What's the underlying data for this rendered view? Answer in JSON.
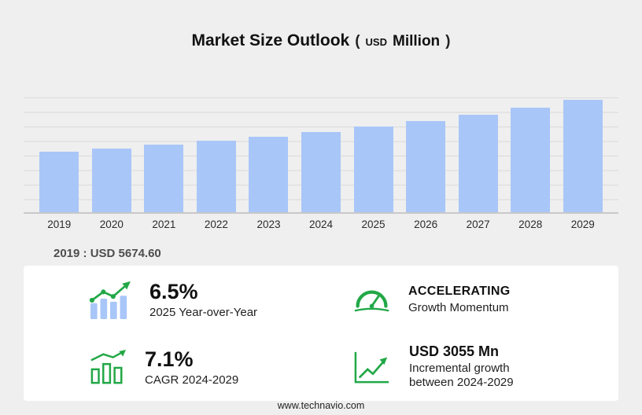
{
  "colors": {
    "accent_green": "#22a847",
    "bar_blue": "#a9c6f8",
    "background": "#efefef",
    "card_background": "#ffffff"
  },
  "header": {
    "title": "Market Size Outlook",
    "unit_open": "(",
    "unit_currency": "USD",
    "unit_label": "Million",
    "unit_close": ")"
  },
  "chart_data": {
    "type": "bar",
    "title": "Market Size Outlook (USD Million)",
    "xlabel": "",
    "ylabel": "",
    "categories": [
      "2019",
      "2020",
      "2021",
      "2022",
      "2023",
      "2024",
      "2025",
      "2026",
      "2027",
      "2028",
      "2029"
    ],
    "values": [
      5674.6,
      5980,
      6330,
      6700,
      7090,
      7560,
      8050,
      8570,
      9180,
      9830,
      10615
    ],
    "ylim": [
      0,
      10800
    ],
    "grid": true,
    "legend": "none",
    "bar_color": "#a9c6f8",
    "annotation": "2019 : USD  5674.60"
  },
  "annotation": {
    "base_year_value": "2019 : USD  5674.60"
  },
  "stats": [
    {
      "icon": "yoy-bar-chart-icon",
      "value": "6.5%",
      "label": "2025 Year-over-Year"
    },
    {
      "icon": "speedometer-icon",
      "value": "ACCELERATING",
      "label": "Growth Momentum"
    },
    {
      "icon": "cagr-chart-icon",
      "value": "7.1%",
      "label": "CAGR 2024-2029"
    },
    {
      "icon": "incremental-growth-icon",
      "value": "USD 3055 Mn",
      "label": "Incremental growth between 2024-2029"
    }
  ],
  "footer": {
    "url": "www.technavio.com"
  }
}
